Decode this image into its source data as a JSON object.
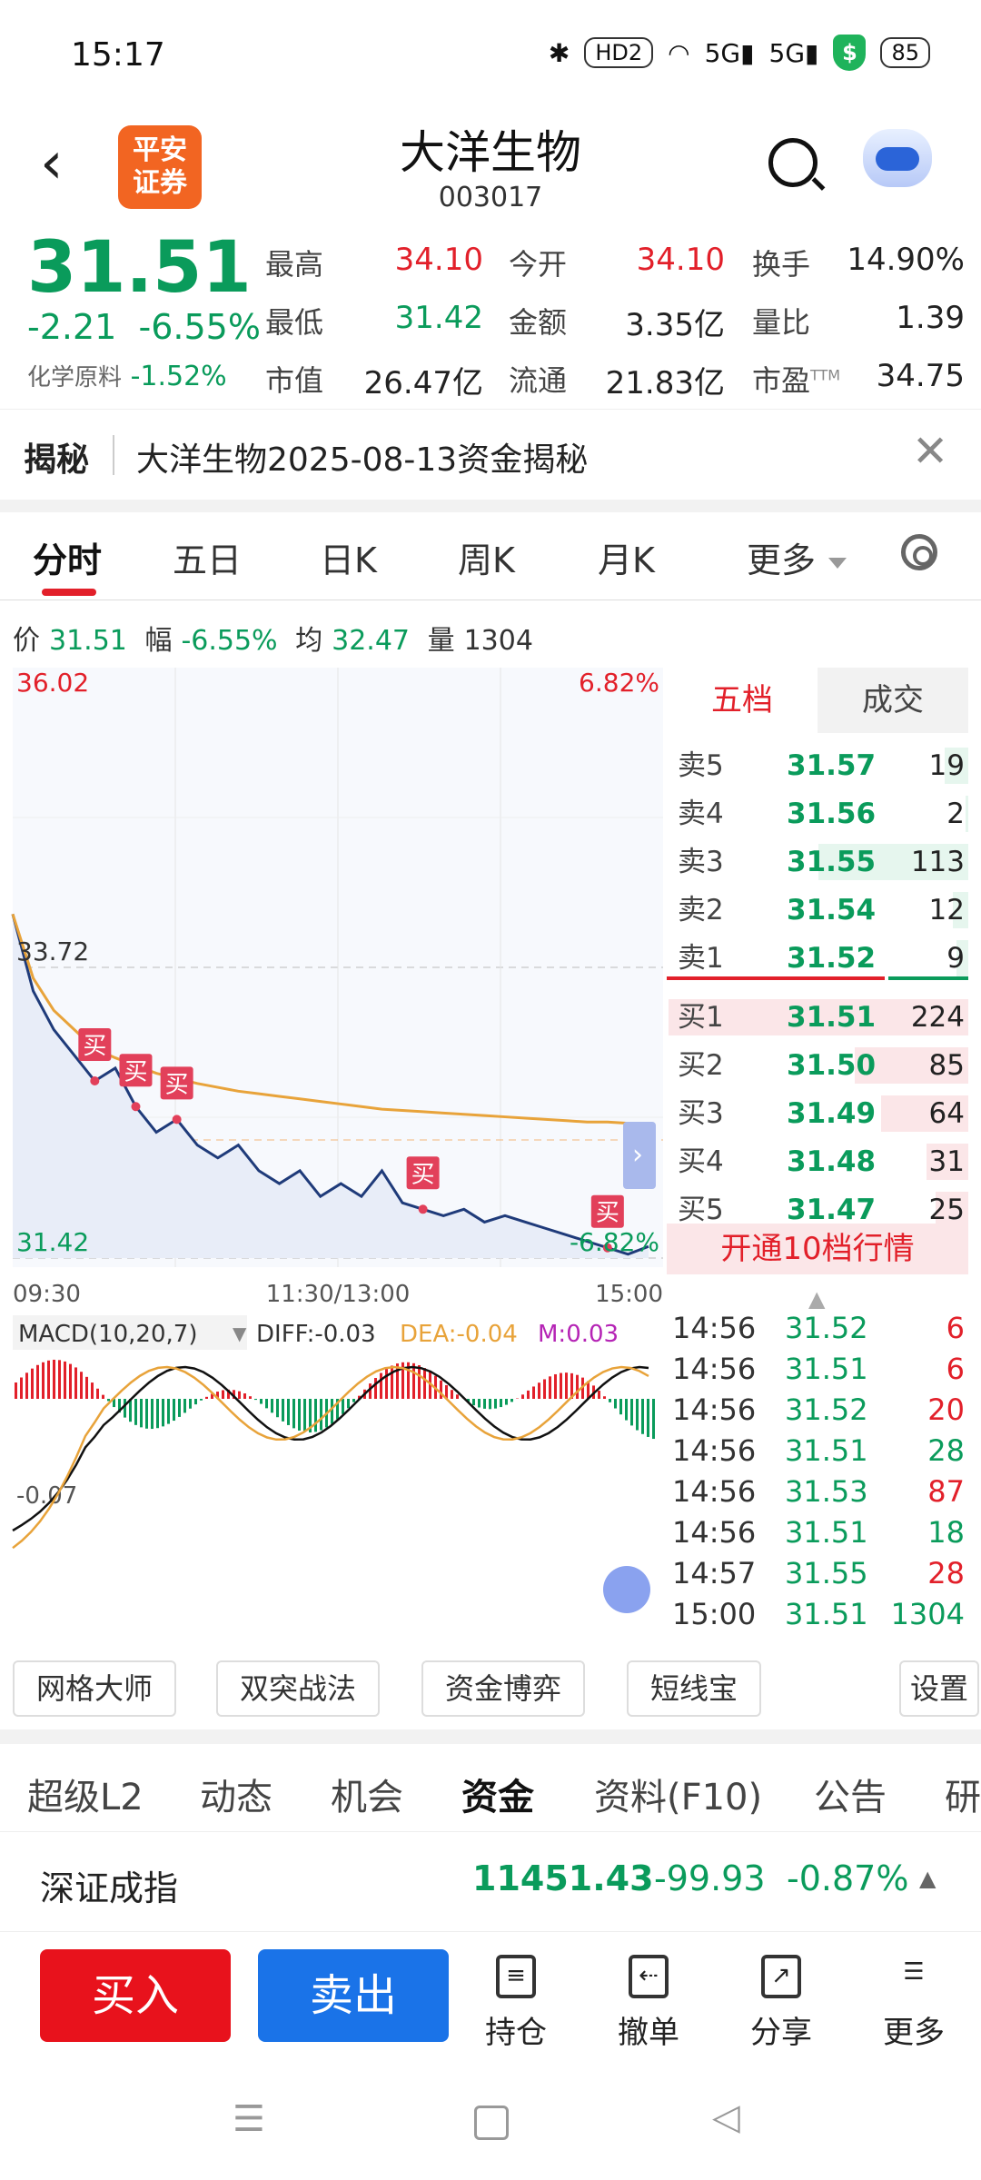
{
  "status": {
    "time": "15:17",
    "battery": "85",
    "icons": [
      "bluetooth-icon",
      "hd-icon",
      "wifi-icon",
      "signal-5g-icon",
      "signal-5g-icon",
      "shield-icon"
    ],
    "hd": "HD2",
    "sig1": "5G",
    "sig2": "5G",
    "shield": "$"
  },
  "header": {
    "title": "大洋生物",
    "code": "003017",
    "logo_line1": "平安",
    "logo_line2": "证券"
  },
  "quote": {
    "price": "31.51",
    "change": "-2.21",
    "change_pct": "-6.55%",
    "sector_label": "化学原料",
    "sector_pct": "-1.52%",
    "cells": [
      {
        "label": "最高",
        "value": "34.10",
        "color": "red"
      },
      {
        "label": "今开",
        "value": "34.10",
        "color": "red"
      },
      {
        "label": "换手",
        "value": "14.90%",
        "color": "black"
      },
      {
        "label": "最低",
        "value": "31.42",
        "color": "green"
      },
      {
        "label": "金额",
        "value": "3.35亿",
        "color": "black"
      },
      {
        "label": "量比",
        "value": "1.39",
        "color": "black"
      },
      {
        "label": "市值",
        "value": "26.47亿",
        "color": "black"
      },
      {
        "label": "流通",
        "value": "21.83亿",
        "color": "black"
      },
      {
        "label": "市盈",
        "value": "34.75",
        "color": "black",
        "sup": "TTM"
      }
    ]
  },
  "banner": {
    "tag": "揭秘",
    "text": "大洋生物2025-08-13资金揭秘"
  },
  "tabs": [
    "分时",
    "五日",
    "日K",
    "周K",
    "月K",
    "更多"
  ],
  "inforow": {
    "price_label": "价",
    "price": "31.51",
    "amp_label": "幅",
    "amp": "-6.55%",
    "avg_label": "均",
    "avg": "32.47",
    "vol_label": "量",
    "vol": "1304"
  },
  "chart": {
    "top_left": "36.02",
    "top_right": "6.82%",
    "prev_close": "33.72",
    "low_left": "31.42",
    "low_right": "-6.82%",
    "x_labels": [
      "09:30",
      "11:30/13:00",
      "15:00"
    ],
    "buy_marker": "买",
    "macd_label": "MACD(10,20,7)",
    "diff": "DIFF:-0.03",
    "dea": "DEA:-0.04",
    "m": "M:0.03",
    "macd_min": "-0.07"
  },
  "chart_data": {
    "type": "line",
    "title": "",
    "ylim": [
      31.42,
      36.02
    ],
    "prev_close": 33.72,
    "series": [
      {
        "values": [
          34.1,
          33.5,
          33.2,
          33.0,
          32.8,
          32.9,
          32.6,
          32.4,
          32.5,
          32.3,
          32.2,
          32.3,
          32.1,
          32.0,
          32.1,
          31.9,
          32.0,
          31.9,
          32.1,
          31.85,
          31.8,
          31.75,
          31.8,
          31.7,
          31.75,
          31.7,
          31.65,
          31.6,
          31.55,
          31.5,
          31.45,
          31.51
        ]
      },
      {
        "values": [
          34.1,
          33.6,
          33.35,
          33.2,
          33.05,
          32.98,
          32.92,
          32.86,
          32.82,
          32.78,
          32.75,
          32.72,
          32.7,
          32.68,
          32.66,
          32.64,
          32.62,
          32.6,
          32.58,
          32.57,
          32.56,
          32.55,
          32.54,
          32.53,
          32.52,
          32.51,
          32.5,
          32.49,
          32.48,
          32.48,
          32.47,
          32.47
        ]
      }
    ]
  },
  "orderbook": {
    "tabs": [
      "五档",
      "成交"
    ],
    "asks": [
      {
        "label": "卖5",
        "price": "31.57",
        "vol": "19",
        "frac": 0.08
      },
      {
        "label": "卖4",
        "price": "31.56",
        "vol": "2",
        "frac": 0.01
      },
      {
        "label": "卖3",
        "price": "31.55",
        "vol": "113",
        "frac": 0.5
      },
      {
        "label": "卖2",
        "price": "31.54",
        "vol": "12",
        "frac": 0.05
      },
      {
        "label": "卖1",
        "price": "31.52",
        "vol": "9",
        "frac": 0.04
      }
    ],
    "bids": [
      {
        "label": "买1",
        "price": "31.51",
        "vol": "224",
        "frac": 1.0
      },
      {
        "label": "买2",
        "price": "31.50",
        "vol": "85",
        "frac": 0.38
      },
      {
        "label": "买3",
        "price": "31.49",
        "vol": "64",
        "frac": 0.29
      },
      {
        "label": "买4",
        "price": "31.48",
        "vol": "31",
        "frac": 0.14
      },
      {
        "label": "买5",
        "price": "31.47",
        "vol": "25",
        "frac": 0.11
      }
    ],
    "open10": "开通10档行情"
  },
  "ticks": [
    {
      "time": "14:56",
      "price": "31.52",
      "vol": "6",
      "color": "red"
    },
    {
      "time": "14:56",
      "price": "31.51",
      "vol": "6",
      "color": "red"
    },
    {
      "time": "14:56",
      "price": "31.52",
      "vol": "20",
      "color": "red"
    },
    {
      "time": "14:56",
      "price": "31.51",
      "vol": "28",
      "color": "green"
    },
    {
      "time": "14:56",
      "price": "31.53",
      "vol": "87",
      "color": "red"
    },
    {
      "time": "14:56",
      "price": "31.51",
      "vol": "18",
      "color": "green"
    },
    {
      "time": "14:57",
      "price": "31.55",
      "vol": "28",
      "color": "red"
    },
    {
      "time": "15:00",
      "price": "31.51",
      "vol": "1304",
      "color": "green"
    }
  ],
  "tools": [
    "网格大师",
    "双突战法",
    "资金博弈",
    "短线宝",
    "设置"
  ],
  "subtabs": [
    "超级L2",
    "动态",
    "机会",
    "资金",
    "资料(F10)",
    "公告",
    "研"
  ],
  "index": {
    "name": "深证成指",
    "value": "11451.43",
    "change": "-99.93",
    "pct": "-0.87%"
  },
  "bottom": {
    "buy": "买入",
    "sell": "卖出",
    "items": [
      "持仓",
      "撤单",
      "分享",
      "更多"
    ]
  },
  "colors": {
    "red": "#e2202a",
    "green": "#0a9b5b",
    "blue": "#1a73e8",
    "orange": "#e8a33a"
  }
}
